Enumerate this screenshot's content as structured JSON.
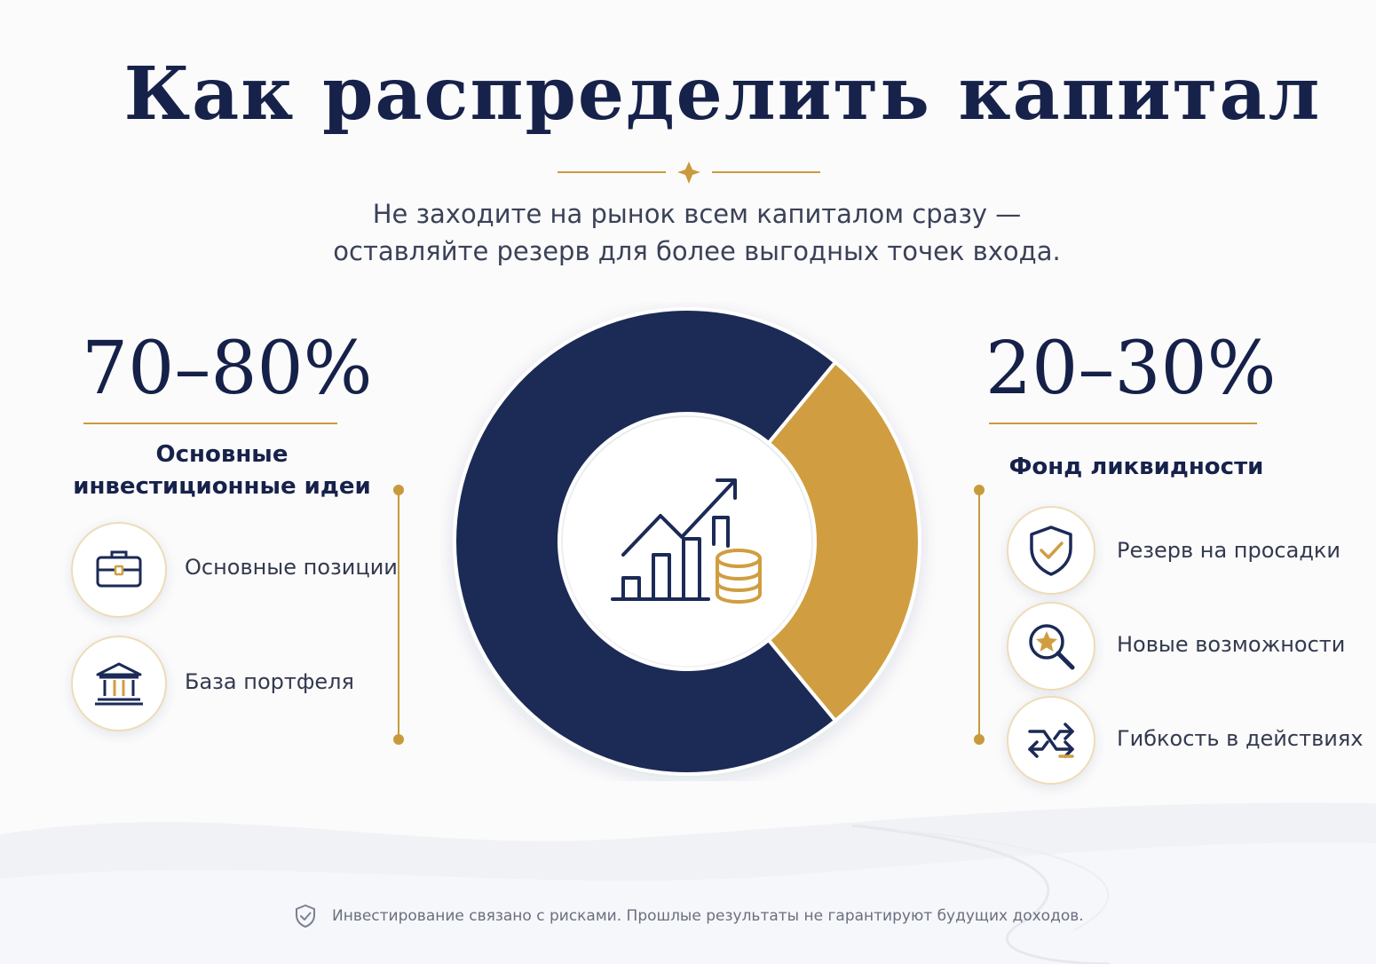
{
  "header": {
    "title": "Как распределить капитал",
    "subtitle_line1": "Не заходите на рынок всем капиталом сразу —",
    "subtitle_line2": "оставляйте резерв для более выгодных точек входа."
  },
  "left": {
    "percent": "70–80%",
    "heading_line1": "Основные",
    "heading_line2": "инвестиционные идеи",
    "items": [
      {
        "label": "Основные позиции",
        "icon": "briefcase-icon"
      },
      {
        "label": "База портфеля",
        "icon": "bank-icon"
      }
    ]
  },
  "right": {
    "percent": "20–30%",
    "heading": "Фонд ликвидности",
    "items": [
      {
        "label": "Резерв на просадки",
        "icon": "shield-check-icon"
      },
      {
        "label": "Новые возможности",
        "icon": "search-star-icon"
      },
      {
        "label": "Гибкость в действиях",
        "icon": "arrows-swap-icon"
      }
    ]
  },
  "chart_data": {
    "type": "pie",
    "slices": [
      {
        "label": "Основные инвестиционные идеи",
        "value": 72,
        "color": "#1b2a56"
      },
      {
        "label": "Фонд ликвидности",
        "value": 28,
        "color": "#d09e40"
      }
    ],
    "center_icon": "growth-chart-coins-icon"
  },
  "footer": {
    "disclaimer": "Инвестирование связано с рисками. Прошлые результаты не гарантируют будущих доходов.",
    "icon": "shield-check-icon"
  },
  "colors": {
    "navy": "#1b2a56",
    "gold": "#d09e40",
    "gold_line": "#c99a3b"
  }
}
